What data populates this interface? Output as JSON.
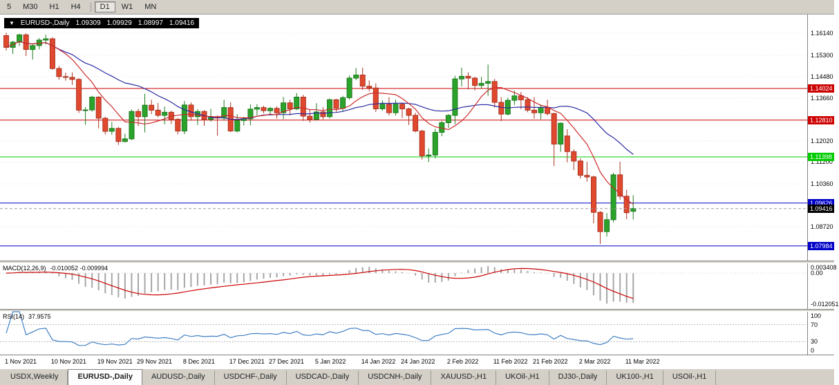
{
  "toolbar": {
    "items": [
      {
        "label": "5"
      },
      {
        "label": "M30"
      },
      {
        "label": "H1"
      },
      {
        "label": "H4"
      },
      {
        "separator": true
      },
      {
        "label": "D1",
        "active": true
      },
      {
        "label": "W1"
      },
      {
        "label": "MN"
      }
    ]
  },
  "chart": {
    "overlay": {
      "arrow": "▼",
      "symbol": "EURUSD-,Daily",
      "open": "1.09309",
      "high": "1.09929",
      "low": "1.08997",
      "close": "1.09416"
    },
    "price_ticks": [
      {
        "label": "1.16140",
        "price": 1.1614
      },
      {
        "label": "1.15300",
        "price": 1.153
      },
      {
        "label": "1.14480",
        "price": 1.1448
      },
      {
        "label": "1.13660",
        "price": 1.1366
      },
      {
        "label": "1.12020",
        "price": 1.1202
      },
      {
        "label": "1.11200",
        "price": 1.112
      },
      {
        "label": "1.10360",
        "price": 1.1036
      },
      {
        "label": "1.08720",
        "price": 1.0872
      }
    ],
    "hlines": [
      {
        "label": "1.14024",
        "price": 1.14024,
        "color": "#cc0000"
      },
      {
        "label": "1.12810",
        "price": 1.1281,
        "color": "#cc0000"
      },
      {
        "label": "1.11398",
        "price": 1.11398,
        "color": "#00cc00"
      },
      {
        "label": "1.09626",
        "price": 1.09626,
        "color": "#0000c8"
      },
      {
        "label": "1.07984",
        "price": 1.07984,
        "color": "#0000c8"
      }
    ],
    "current_price": {
      "label": "1.09416",
      "price": 1.09416,
      "color": "#000000"
    }
  },
  "macd": {
    "name": "MACD(12,26,9)",
    "values": "-0.010052 -0.009994",
    "axis": [
      "0.003408",
      "0.00",
      "-0.012051"
    ]
  },
  "rsi": {
    "name": "RSI(14)",
    "value": "37.9575",
    "axis": [
      "100",
      "70",
      "30",
      "0"
    ],
    "levels": [
      70,
      30
    ]
  },
  "date_axis": {
    "ticks": [
      {
        "label": "1 Nov 2021",
        "index": 0
      },
      {
        "label": "10 Nov 2021",
        "index": 7
      },
      {
        "label": "19 Nov 2021",
        "index": 14
      },
      {
        "label": "29 Nov 2021",
        "index": 20
      },
      {
        "label": "8 Dec 2021",
        "index": 27
      },
      {
        "label": "17 Dec 2021",
        "index": 34
      },
      {
        "label": "27 Dec 2021",
        "index": 40
      },
      {
        "label": "5 Jan 2022",
        "index": 47
      },
      {
        "label": "14 Jan 2022",
        "index": 54
      },
      {
        "label": "24 Jan 2022",
        "index": 60
      },
      {
        "label": "2 Feb 2022",
        "index": 67
      },
      {
        "label": "11 Feb 2022",
        "index": 74
      },
      {
        "label": "21 Feb 2022",
        "index": 80
      },
      {
        "label": "2 Mar 2022",
        "index": 87
      },
      {
        "label": "11 Mar 2022",
        "index": 94
      }
    ]
  },
  "tabs": [
    {
      "label": "USDX,Weekly"
    },
    {
      "label": "EURUSD-,Daily",
      "active": true
    },
    {
      "label": "AUDUSD-,Daily"
    },
    {
      "label": "USDCHF-,Daily"
    },
    {
      "label": "USDCAD-,Daily"
    },
    {
      "label": "USDCNH-,Daily"
    },
    {
      "label": "XAUUSD-,H1"
    },
    {
      "label": "UKOil-,H1"
    },
    {
      "label": "DJ30-,Daily"
    },
    {
      "label": "UK100-,H1"
    },
    {
      "label": "USOil-,H1"
    }
  ],
  "colors": {
    "up_fill": "#2ba32b",
    "up_edge": "#1d7a1d",
    "down_fill": "#e1492f",
    "down_edge": "#a83220",
    "ma_fast": "#cc2929",
    "ma_slow": "#2929a3",
    "macd_bar": "#a6a6a6",
    "macd_signal": "#cc0000",
    "rsi_line": "#3f7fc4",
    "grid": "#e0e0e0",
    "level_red": "#cc0000",
    "level_green": "#00cc00",
    "level_blue": "#0000c8"
  },
  "chart_data": {
    "type": "candlestick",
    "symbol": "EURUSD-",
    "timeframe": "Daily",
    "ohlc_order": "open,high,low,close",
    "ylim": [
      1.0742,
      1.1686
    ],
    "current_bar": {
      "open": 1.09309,
      "high": 1.09929,
      "low": 1.08997,
      "close": 1.09416
    },
    "ohlc": [
      [
        1.1605,
        1.1616,
        1.1548,
        1.156
      ],
      [
        1.156,
        1.1585,
        1.1535,
        1.158
      ],
      [
        1.158,
        1.1612,
        1.1565,
        1.1608
      ],
      [
        1.1608,
        1.1614,
        1.1527,
        1.1552
      ],
      [
        1.1552,
        1.1574,
        1.1513,
        1.1567
      ],
      [
        1.1567,
        1.1596,
        1.1552,
        1.1588
      ],
      [
        1.1588,
        1.1609,
        1.1571,
        1.1593
      ],
      [
        1.1593,
        1.1598,
        1.1474,
        1.1479
      ],
      [
        1.1479,
        1.1488,
        1.1436,
        1.1448
      ],
      [
        1.1448,
        1.1463,
        1.1432,
        1.1445
      ],
      [
        1.1445,
        1.1464,
        1.1416,
        1.1437
      ],
      [
        1.1437,
        1.1442,
        1.1308,
        1.1319
      ],
      [
        1.1319,
        1.1331,
        1.1263,
        1.132
      ],
      [
        1.132,
        1.1374,
        1.1313,
        1.1369
      ],
      [
        1.1369,
        1.1373,
        1.1249,
        1.1288
      ],
      [
        1.1288,
        1.1294,
        1.1226,
        1.1238
      ],
      [
        1.1238,
        1.1274,
        1.1225,
        1.1249
      ],
      [
        1.1249,
        1.1255,
        1.1186,
        1.1199
      ],
      [
        1.1199,
        1.1229,
        1.1195,
        1.1209
      ],
      [
        1.1209,
        1.1322,
        1.1204,
        1.1314
      ],
      [
        1.1314,
        1.1324,
        1.1258,
        1.1294
      ],
      [
        1.1294,
        1.1382,
        1.1234,
        1.1338
      ],
      [
        1.1338,
        1.1359,
        1.1304,
        1.1319
      ],
      [
        1.1319,
        1.1347,
        1.1292,
        1.1299
      ],
      [
        1.1299,
        1.1333,
        1.1265,
        1.1311
      ],
      [
        1.1311,
        1.1317,
        1.1266,
        1.1284
      ],
      [
        1.1284,
        1.1289,
        1.1226,
        1.1239
      ],
      [
        1.1239,
        1.1354,
        1.1227,
        1.1339
      ],
      [
        1.1339,
        1.1349,
        1.1279,
        1.1294
      ],
      [
        1.1294,
        1.1323,
        1.1262,
        1.1314
      ],
      [
        1.1314,
        1.1319,
        1.1259,
        1.1284
      ],
      [
        1.1284,
        1.1324,
        1.1275,
        1.1294
      ],
      [
        1.1294,
        1.1299,
        1.1221,
        1.1289
      ],
      [
        1.1289,
        1.1359,
        1.1279,
        1.1329
      ],
      [
        1.1329,
        1.1349,
        1.1235,
        1.1239
      ],
      [
        1.1239,
        1.1303,
        1.1234,
        1.1279
      ],
      [
        1.1279,
        1.1294,
        1.126,
        1.1286
      ],
      [
        1.1286,
        1.1341,
        1.1261,
        1.1323
      ],
      [
        1.1323,
        1.1342,
        1.1299,
        1.1329
      ],
      [
        1.1329,
        1.1336,
        1.1307,
        1.1317
      ],
      [
        1.1317,
        1.1332,
        1.1304,
        1.1326
      ],
      [
        1.1326,
        1.1334,
        1.1287,
        1.1309
      ],
      [
        1.1309,
        1.1369,
        1.1285,
        1.1347
      ],
      [
        1.1347,
        1.1359,
        1.1299,
        1.1324
      ],
      [
        1.1324,
        1.1385,
        1.1319,
        1.1369
      ],
      [
        1.1369,
        1.1378,
        1.1278,
        1.1296
      ],
      [
        1.1296,
        1.1323,
        1.1271,
        1.1284
      ],
      [
        1.1284,
        1.1346,
        1.1279,
        1.1312
      ],
      [
        1.1312,
        1.1331,
        1.1284,
        1.1294
      ],
      [
        1.1294,
        1.1364,
        1.1287,
        1.1359
      ],
      [
        1.1359,
        1.1362,
        1.1313,
        1.1326
      ],
      [
        1.1326,
        1.1374,
        1.1314,
        1.1367
      ],
      [
        1.1367,
        1.1452,
        1.1359,
        1.1442
      ],
      [
        1.1442,
        1.1481,
        1.1434,
        1.1454
      ],
      [
        1.1454,
        1.1482,
        1.1397,
        1.1411
      ],
      [
        1.1411,
        1.1433,
        1.1391,
        1.1404
      ],
      [
        1.1404,
        1.1422,
        1.1312,
        1.1324
      ],
      [
        1.1324,
        1.1357,
        1.1317,
        1.1342
      ],
      [
        1.1342,
        1.1369,
        1.1299,
        1.1309
      ],
      [
        1.1309,
        1.1359,
        1.1299,
        1.1342
      ],
      [
        1.1342,
        1.1348,
        1.1289,
        1.1324
      ],
      [
        1.1324,
        1.1329,
        1.1262,
        1.1299
      ],
      [
        1.1299,
        1.1309,
        1.1234,
        1.1239
      ],
      [
        1.1239,
        1.1244,
        1.113,
        1.1144
      ],
      [
        1.1144,
        1.1172,
        1.112,
        1.1147
      ],
      [
        1.1147,
        1.1247,
        1.1134,
        1.1234
      ],
      [
        1.1234,
        1.1278,
        1.1219,
        1.1271
      ],
      [
        1.1271,
        1.1304,
        1.1251,
        1.1299
      ],
      [
        1.1299,
        1.1451,
        1.1265,
        1.1439
      ],
      [
        1.1439,
        1.1482,
        1.141,
        1.1449
      ],
      [
        1.1449,
        1.1464,
        1.1399,
        1.1442
      ],
      [
        1.1442,
        1.1447,
        1.1395,
        1.1414
      ],
      [
        1.1414,
        1.1447,
        1.1402,
        1.1422
      ],
      [
        1.1422,
        1.1494,
        1.1374,
        1.1429
      ],
      [
        1.1429,
        1.1439,
        1.1329,
        1.1349
      ],
      [
        1.1349,
        1.1369,
        1.1277,
        1.1304
      ],
      [
        1.1304,
        1.1367,
        1.1299,
        1.1357
      ],
      [
        1.1357,
        1.1394,
        1.1339,
        1.1374
      ],
      [
        1.1374,
        1.1389,
        1.1323,
        1.1359
      ],
      [
        1.1359,
        1.1369,
        1.1311,
        1.1319
      ],
      [
        1.1319,
        1.1369,
        1.1287,
        1.1309
      ],
      [
        1.1309,
        1.1341,
        1.1284,
        1.1329
      ],
      [
        1.1329,
        1.1359,
        1.1299,
        1.1306
      ],
      [
        1.1306,
        1.1309,
        1.1105,
        1.1189
      ],
      [
        1.1189,
        1.1272,
        1.1159,
        1.1269
      ],
      [
        1.122,
        1.1246,
        1.1119,
        1.116
      ],
      [
        1.116,
        1.1169,
        1.1089,
        1.1124
      ],
      [
        1.1124,
        1.1134,
        1.1057,
        1.1069
      ],
      [
        1.1069,
        1.1121,
        1.1045,
        1.1063
      ],
      [
        1.1063,
        1.1068,
        1.0885,
        1.0927
      ],
      [
        1.0927,
        1.0932,
        1.0806,
        1.0853
      ],
      [
        1.0853,
        1.0924,
        1.0834,
        1.0899
      ],
      [
        1.0899,
        1.1079,
        1.0889,
        1.1071
      ],
      [
        1.1071,
        1.1121,
        1.0976,
        1.0989
      ],
      [
        1.0989,
        1.1014,
        1.0901,
        1.0926
      ],
      [
        1.09309,
        1.09929,
        1.08997,
        1.09416
      ]
    ]
  }
}
